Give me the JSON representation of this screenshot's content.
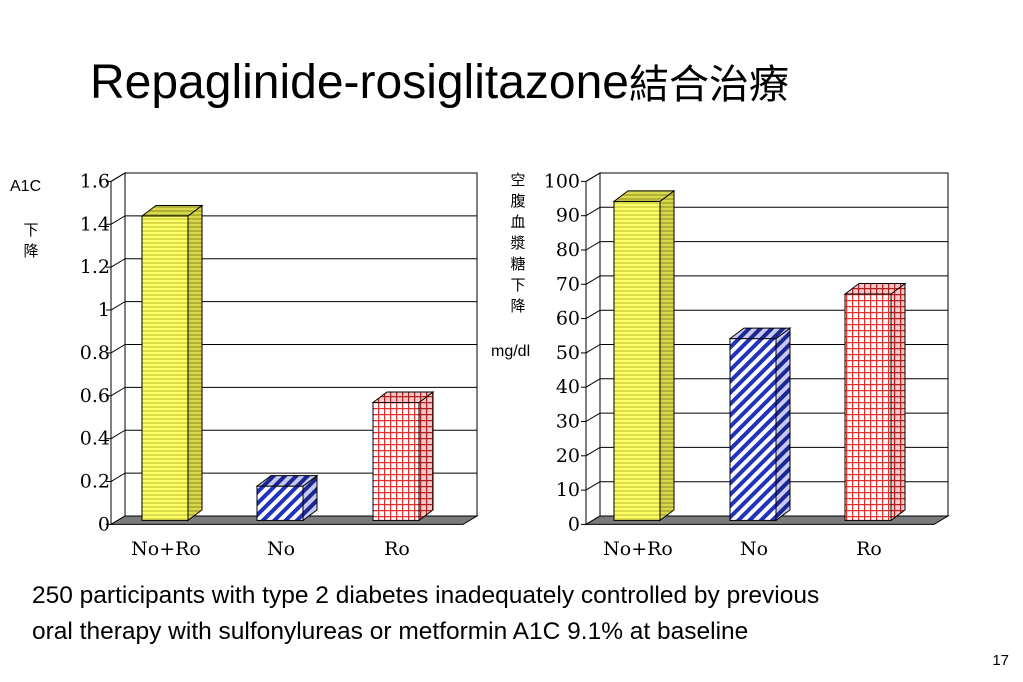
{
  "slide": {
    "title_latin": "Repaglinide-rosiglitazone",
    "title_cjk": "結合治療",
    "caption_line1": "250 participants with type 2 diabetes inadequately controlled by previous",
    "caption_line2": "oral therapy with sulfonylureas or metformin A1C 9.1% at baseline",
    "page_number": "17"
  },
  "chart_data": [
    {
      "type": "bar",
      "ylabel_top": "A1C",
      "ylabel_chars": [
        "下",
        "降"
      ],
      "categories": [
        "No+Ro",
        "No",
        "Ro"
      ],
      "values": [
        1.42,
        0.16,
        0.55
      ],
      "ylim": [
        0,
        1.6
      ],
      "yticks": [
        "0",
        "0.2",
        "0.4",
        "0.6",
        "0.8",
        "1",
        "1.2",
        "1.4",
        "1.6"
      ],
      "grid": true,
      "bar_colors": [
        "#ffff66",
        "#3333cc",
        "#e03030"
      ],
      "bar_patterns": [
        "horizontal-stripes",
        "diagonal-stripes",
        "grid"
      ]
    },
    {
      "type": "bar",
      "ylabel_chars": [
        "空",
        "腹",
        "血",
        "漿",
        "糖",
        "下",
        "降"
      ],
      "ylabel_unit": "mg/dl",
      "categories": [
        "No+Ro",
        "No",
        "Ro"
      ],
      "values": [
        93,
        53,
        66
      ],
      "ylim": [
        0,
        100
      ],
      "yticks": [
        "0",
        "10",
        "20",
        "30",
        "40",
        "50",
        "60",
        "70",
        "80",
        "90",
        "100"
      ],
      "grid": true,
      "bar_colors": [
        "#ffff66",
        "#3333cc",
        "#e03030"
      ],
      "bar_patterns": [
        "horizontal-stripes",
        "diagonal-stripes",
        "grid"
      ]
    }
  ]
}
